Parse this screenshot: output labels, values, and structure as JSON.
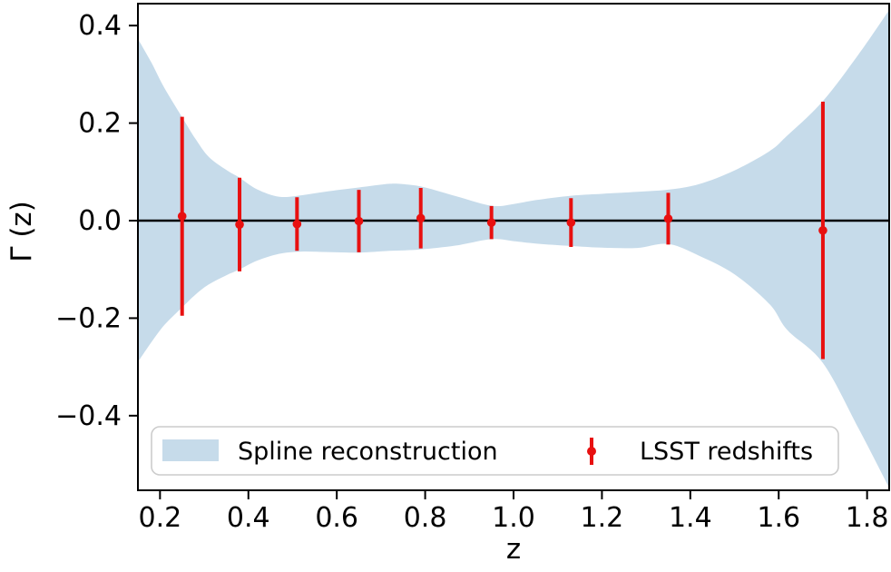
{
  "chart_data": {
    "type": "area",
    "subtype": "confidence-band-with-errorbars",
    "title": "",
    "xlabel": "z",
    "ylabel": "Γ (z)",
    "xlim": [
      0.15,
      1.85
    ],
    "ylim": [
      -0.553,
      0.445
    ],
    "grid": false,
    "zero_line": {
      "value": 0.0,
      "color": "#000000"
    },
    "x_ticks": [
      {
        "v": 0.2,
        "label": "0.2"
      },
      {
        "v": 0.4,
        "label": "0.4"
      },
      {
        "v": 0.6,
        "label": "0.6"
      },
      {
        "v": 0.8,
        "label": "0.8"
      },
      {
        "v": 1.0,
        "label": "1.0"
      },
      {
        "v": 1.2,
        "label": "1.2"
      },
      {
        "v": 1.4,
        "label": "1.4"
      },
      {
        "v": 1.6,
        "label": "1.6"
      },
      {
        "v": 1.8,
        "label": "1.8"
      }
    ],
    "y_ticks": [
      {
        "v": 0.4,
        "label": "0.4"
      },
      {
        "v": 0.2,
        "label": "0.2"
      },
      {
        "v": 0.0,
        "label": "0.0"
      },
      {
        "v": -0.2,
        "label": "−0.2"
      },
      {
        "v": -0.4,
        "label": "−0.4"
      }
    ],
    "legend_position": "lower center",
    "band": {
      "name": "Spline reconstruction",
      "color": "#c6dbea",
      "upper": [
        [
          0.15,
          0.373
        ],
        [
          0.18,
          0.325
        ],
        [
          0.21,
          0.272
        ],
        [
          0.25,
          0.212
        ],
        [
          0.28,
          0.168
        ],
        [
          0.31,
          0.131
        ],
        [
          0.35,
          0.104
        ],
        [
          0.38,
          0.088
        ],
        [
          0.42,
          0.064
        ],
        [
          0.47,
          0.049
        ],
        [
          0.52,
          0.052
        ],
        [
          0.58,
          0.06
        ],
        [
          0.65,
          0.068
        ],
        [
          0.72,
          0.0755
        ],
        [
          0.76,
          0.074
        ],
        [
          0.8,
          0.068
        ],
        [
          0.87,
          0.05
        ],
        [
          0.95,
          0.0305
        ],
        [
          1.0,
          0.034
        ],
        [
          1.05,
          0.042
        ],
        [
          1.13,
          0.051
        ],
        [
          1.2,
          0.055
        ],
        [
          1.28,
          0.059
        ],
        [
          1.35,
          0.0635
        ],
        [
          1.42,
          0.075
        ],
        [
          1.5,
          0.103
        ],
        [
          1.58,
          0.143
        ],
        [
          1.62,
          0.175
        ],
        [
          1.7,
          0.245
        ],
        [
          1.78,
          0.34
        ],
        [
          1.85,
          0.432
        ]
      ],
      "lower": [
        [
          0.15,
          -0.29
        ],
        [
          0.18,
          -0.25
        ],
        [
          0.21,
          -0.214
        ],
        [
          0.25,
          -0.178
        ],
        [
          0.28,
          -0.152
        ],
        [
          0.31,
          -0.131
        ],
        [
          0.35,
          -0.112
        ],
        [
          0.38,
          -0.1
        ],
        [
          0.42,
          -0.082
        ],
        [
          0.47,
          -0.068
        ],
        [
          0.52,
          -0.0635
        ],
        [
          0.58,
          -0.0645
        ],
        [
          0.65,
          -0.0655
        ],
        [
          0.72,
          -0.062
        ],
        [
          0.79,
          -0.059
        ],
        [
          0.87,
          -0.051
        ],
        [
          0.95,
          -0.038
        ],
        [
          1.0,
          -0.042
        ],
        [
          1.05,
          -0.047
        ],
        [
          1.13,
          -0.052
        ],
        [
          1.2,
          -0.0555
        ],
        [
          1.28,
          -0.056
        ],
        [
          1.35,
          -0.048
        ],
        [
          1.42,
          -0.072
        ],
        [
          1.5,
          -0.11
        ],
        [
          1.58,
          -0.172
        ],
        [
          1.62,
          -0.225
        ],
        [
          1.7,
          -0.292
        ],
        [
          1.78,
          -0.425
        ],
        [
          1.85,
          -0.548
        ]
      ]
    },
    "errorbars": {
      "name": "LSST redshifts",
      "color": "#e81010",
      "points": [
        {
          "z": 0.25,
          "y": 0.009,
          "err": 0.204
        },
        {
          "z": 0.38,
          "y": -0.008,
          "err": 0.096
        },
        {
          "z": 0.51,
          "y": -0.007,
          "err": 0.055
        },
        {
          "z": 0.65,
          "y": -0.001,
          "err": 0.064
        },
        {
          "z": 0.79,
          "y": 0.005,
          "err": 0.062
        },
        {
          "z": 0.95,
          "y": -0.004,
          "err": 0.034
        },
        {
          "z": 1.13,
          "y": -0.004,
          "err": 0.05
        },
        {
          "z": 1.35,
          "y": 0.004,
          "err": 0.053
        },
        {
          "z": 1.7,
          "y": -0.02,
          "err": 0.264
        }
      ]
    }
  }
}
